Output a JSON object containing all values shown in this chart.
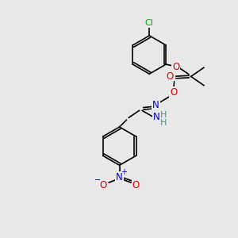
{
  "bg_color": "#e8e8e8",
  "atom_colors": {
    "C": "#000000",
    "O": "#dd0000",
    "N": "#0000bb",
    "Cl": "#00aa00",
    "NH": "#4a9090"
  },
  "bond_color": "#000000",
  "bond_width": 1.2,
  "fig_size": [
    3.0,
    3.0
  ],
  "dpi": 100
}
